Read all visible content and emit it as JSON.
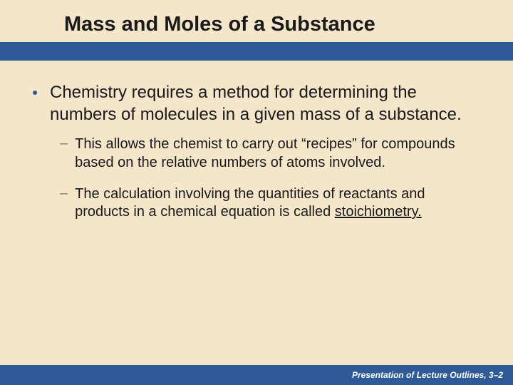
{
  "colors": {
    "background": "#f4e6c8",
    "bar": "#2e5a98",
    "bullet": "#2e5a98",
    "subdash": "#7a8a5a",
    "text": "#1a1a1a",
    "footer_text": "#ffffff"
  },
  "title": "Mass and Moles of a Substance",
  "bullet": {
    "text": "Chemistry requires a method for determining the numbers of molecules in a given mass of a substance."
  },
  "sub1": {
    "text": "This allows the chemist to carry out “recipes” for compounds based on the relative numbers of atoms involved."
  },
  "sub2": {
    "prefix": "The calculation involving the quantities of reactants and products in a chemical equation is called ",
    "underlined": "stoichiometry."
  },
  "footer": "Presentation of Lecture Outlines, 3–2"
}
